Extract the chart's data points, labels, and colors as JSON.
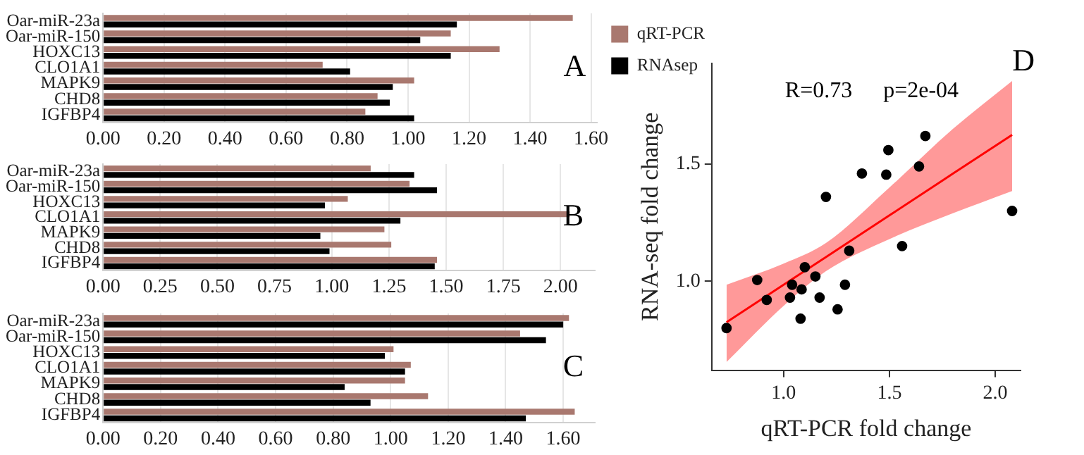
{
  "chart_data": [
    {
      "type": "bar",
      "orientation": "horizontal",
      "categories": [
        "Oar-miR-23a",
        "Oar-miR-150",
        "HOXC13",
        "CLO1A1",
        "MAPK9",
        "CHD8",
        "IGFBP4"
      ],
      "series": [
        {
          "name": "qRT-PCR",
          "color": "#a9786f",
          "values": [
            1.54,
            1.14,
            1.3,
            0.72,
            1.02,
            0.9,
            0.86
          ]
        },
        {
          "name": "RNAsep",
          "color": "#000000",
          "values": [
            1.16,
            1.04,
            1.14,
            0.81,
            0.95,
            0.94,
            1.02
          ]
        }
      ],
      "xlim": [
        0,
        1.62
      ],
      "xticks": [
        {
          "value": 0,
          "label": "0.00"
        },
        {
          "value": 0.2,
          "label": "0.20"
        },
        {
          "value": 0.4,
          "label": "0.40"
        },
        {
          "value": 0.6,
          "label": "0.60"
        },
        {
          "value": 0.8,
          "label": "0.80"
        },
        {
          "value": 1.0,
          "label": "1.00"
        },
        {
          "value": 1.2,
          "label": "1.20"
        },
        {
          "value": 1.4,
          "label": "1.40"
        },
        {
          "value": 1.6,
          "label": "1.60"
        }
      ],
      "grid": "x",
      "legend": "right",
      "annotations": [
        "A"
      ]
    },
    {
      "type": "bar",
      "orientation": "horizontal",
      "categories": [
        "Oar-miR-23a",
        "Oar-miR-150",
        "HOXC13",
        "CLO1A1",
        "MAPK9",
        "CHD8",
        "IGFBP4"
      ],
      "series": [
        {
          "color": "#a9786f",
          "values": [
            1.17,
            1.34,
            1.07,
            2.04,
            1.23,
            1.26,
            1.46
          ]
        },
        {
          "color": "#000000",
          "values": [
            1.36,
            1.46,
            0.97,
            1.3,
            0.95,
            0.99,
            1.45
          ]
        }
      ],
      "xlim": [
        0,
        2.15
      ],
      "xticks": [
        {
          "value": 0,
          "label": "0.00"
        },
        {
          "value": 0.25,
          "label": "0.25"
        },
        {
          "value": 0.5,
          "label": "0.50"
        },
        {
          "value": 0.75,
          "label": "0.75"
        },
        {
          "value": 1.0,
          "label": "1.00"
        },
        {
          "value": 1.25,
          "label": "1.25"
        },
        {
          "value": 1.5,
          "label": "1.50"
        },
        {
          "value": 1.75,
          "label": "1.75"
        },
        {
          "value": 2.0,
          "label": "2.00"
        }
      ],
      "grid": "x",
      "annotations": [
        "B"
      ]
    },
    {
      "type": "bar",
      "orientation": "horizontal",
      "categories": [
        "Oar-miR-23a",
        "Oar-miR-150",
        "HOXC13",
        "CLO1A1",
        "MAPK9",
        "CHD8",
        "IGFBP4"
      ],
      "series": [
        {
          "color": "#a9786f",
          "values": [
            1.62,
            1.45,
            1.01,
            1.07,
            1.05,
            1.13,
            1.64
          ]
        },
        {
          "color": "#000000",
          "values": [
            1.6,
            1.54,
            0.98,
            1.05,
            0.84,
            0.93,
            1.47
          ]
        }
      ],
      "xlim": [
        0,
        1.71
      ],
      "xticks": [
        {
          "value": 0,
          "label": "0.00"
        },
        {
          "value": 0.2,
          "label": "0.20"
        },
        {
          "value": 0.4,
          "label": "0.40"
        },
        {
          "value": 0.6,
          "label": "0.60"
        },
        {
          "value": 0.8,
          "label": "0.80"
        },
        {
          "value": 1.0,
          "label": "1.00"
        },
        {
          "value": 1.2,
          "label": "1.20"
        },
        {
          "value": 1.4,
          "label": "1.40"
        },
        {
          "value": 1.6,
          "label": "1.60"
        }
      ],
      "grid": "x",
      "annotations": [
        "C"
      ]
    },
    {
      "type": "scatter",
      "xlabel": "qRT-PCR fold change",
      "ylabel": "RNA-seq fold change",
      "marker": "circle",
      "series": [
        {
          "color": "#000000",
          "x": [
            0.73,
            0.875,
            0.92,
            1.04,
            1.03,
            1.085,
            1.08,
            1.1,
            1.15,
            1.17,
            1.2,
            1.255,
            1.29,
            1.31,
            1.37,
            1.485,
            1.495,
            1.56,
            1.64,
            1.67,
            2.08
          ],
          "values": [
            0.8,
            1.005,
            0.92,
            0.985,
            0.93,
            0.965,
            0.84,
            1.06,
            1.02,
            0.93,
            1.36,
            0.88,
            0.985,
            1.13,
            1.46,
            1.455,
            1.56,
            1.15,
            1.49,
            1.62,
            1.3
          ]
        },
        {
          "type": "line",
          "color": "#ff0000",
          "marker": "none",
          "x": [
            0.73,
            1.0,
            1.2,
            1.5,
            1.8,
            2.08
          ],
          "values": [
            0.825,
            0.985,
            1.103,
            1.281,
            1.459,
            1.625
          ],
          "lower": [
            0.655,
            0.895,
            1.043,
            1.18,
            1.29,
            1.385
          ],
          "upper": [
            0.985,
            1.075,
            1.163,
            1.4,
            1.65,
            1.855
          ]
        }
      ],
      "xlim": [
        0.66,
        2.12
      ],
      "xticks": [
        {
          "value": 1.0,
          "label": "1.0"
        },
        {
          "value": 1.5,
          "label": "1.5"
        },
        {
          "value": 2.0,
          "label": "2.0"
        }
      ],
      "ylim": [
        0.62,
        1.93
      ],
      "yticks": [
        {
          "value": 1.0,
          "label": "1.0"
        },
        {
          "value": 1.5,
          "label": "1.5"
        }
      ],
      "annotations": [
        "R=0.73",
        "p=2e-04",
        "D"
      ]
    }
  ]
}
